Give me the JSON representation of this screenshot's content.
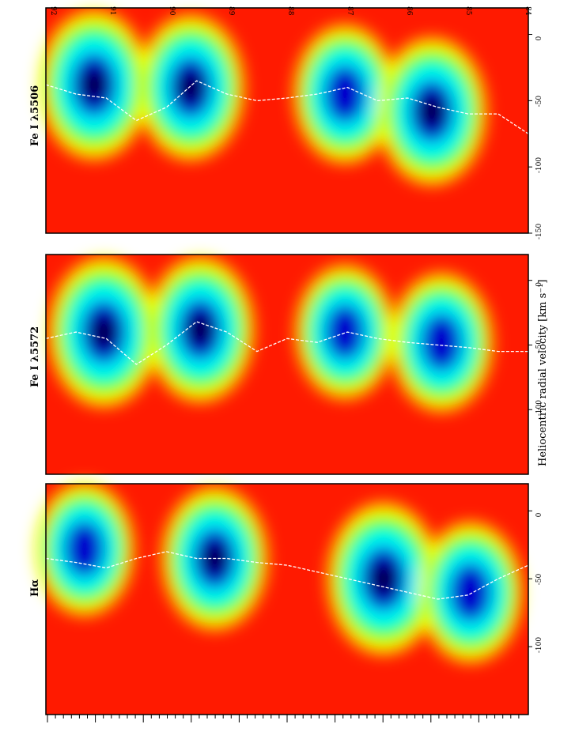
{
  "chart_data": {
    "type": "heatmap",
    "orientation": "rotated-90",
    "colorscale": [
      "#000033",
      "#0000cc",
      "#00ffff",
      "#00ff00",
      "#ffff00",
      "#ff0000",
      "#ff00ff",
      "#ffffff"
    ],
    "xlabel": "Heliocentric radial velocity [km s⁻¹]",
    "time_ticks": [
      "92",
      "91",
      "90",
      "89",
      "88",
      "87",
      "86",
      "85",
      "84"
    ],
    "panels": [
      {
        "name": "Fe I λ5506",
        "label": "Fe I  λ5506",
        "xlim": [
          20,
          -150
        ],
        "vel_ticks": [
          0,
          -50,
          -100,
          -150
        ],
        "vel_tick_labels": [
          "0",
          "-50",
          "-100",
          "-150"
        ],
        "trace_x": [
          -38,
          -45,
          -48,
          -65,
          -55,
          -35,
          -45,
          -50,
          -48,
          -45,
          -40,
          -50,
          -48,
          -55,
          -60,
          -60,
          -75
        ],
        "blobs": [
          {
            "v": -38,
            "t": 0.1,
            "strength": 0.95
          },
          {
            "v": -40,
            "t": 0.3,
            "strength": 0.85
          },
          {
            "v": -45,
            "t": 0.62,
            "strength": 0.7
          },
          {
            "v": -58,
            "t": 0.8,
            "strength": 0.9
          }
        ]
      },
      {
        "name": "Fe I λ5572",
        "label": "Fe I  λ5572",
        "xlim": [
          20,
          -150
        ],
        "vel_ticks": [
          0,
          -50,
          -100
        ],
        "vel_tick_labels": [
          "0",
          "-50",
          "-100"
        ],
        "trace_x": [
          -45,
          -40,
          -45,
          -65,
          -50,
          -32,
          -40,
          -55,
          -45,
          -48,
          -40,
          -45,
          -48,
          -50,
          -52,
          -55,
          -55
        ],
        "blobs": [
          {
            "v": -40,
            "t": 0.12,
            "strength": 0.95
          },
          {
            "v": -38,
            "t": 0.32,
            "strength": 0.85
          },
          {
            "v": -40,
            "t": 0.62,
            "strength": 0.6
          },
          {
            "v": -48,
            "t": 0.82,
            "strength": 0.7
          }
        ]
      },
      {
        "name": "Hα",
        "label": "Hα",
        "xlim": [
          20,
          -150
        ],
        "vel_ticks": [
          0,
          -50,
          -100
        ],
        "vel_tick_labels": [
          "0",
          "-50",
          "-100"
        ],
        "trace_x": [
          -35,
          -38,
          -42,
          -35,
          -30,
          -35,
          -35,
          -38,
          -40,
          -45,
          -50,
          -55,
          -60,
          -65,
          -62,
          -50,
          -40
        ],
        "blobs": [
          {
            "v": -28,
            "t": 0.08,
            "strength": 0.6
          },
          {
            "v": -35,
            "t": 0.35,
            "strength": 0.8
          },
          {
            "v": -50,
            "t": 0.7,
            "strength": 1.0
          },
          {
            "v": -60,
            "t": 0.88,
            "strength": 0.75
          }
        ]
      }
    ]
  }
}
